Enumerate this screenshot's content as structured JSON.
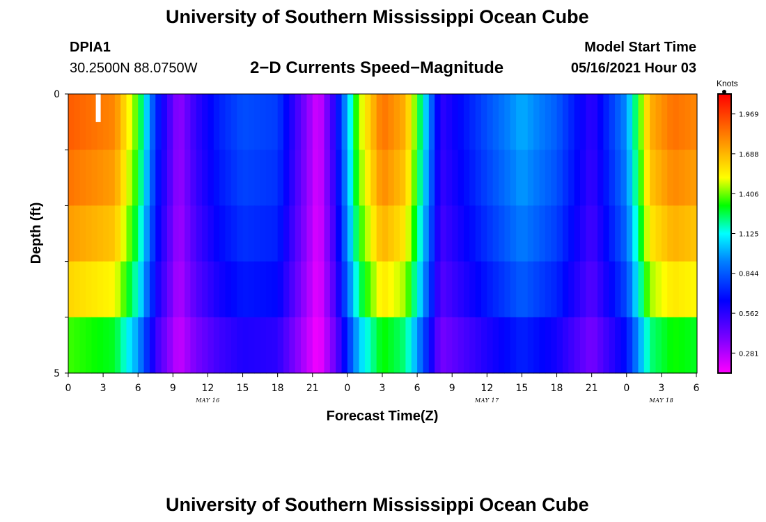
{
  "header": {
    "title": "University of Southern Mississippi Ocean Cube",
    "station": "DPIA1",
    "coords": "30.2500N  88.0750W",
    "subtitle": "2−D Currents Speed−Magnitude",
    "model_start_label": "Model Start Time",
    "model_start_value": "05/16/2021 Hour 03"
  },
  "footer": {
    "title": "University of Southern Mississippi Ocean Cube"
  },
  "colorbar": {
    "unit": "Knots",
    "ticks": [
      "1.969",
      "1.688",
      "1.406",
      "1.125",
      "0.844",
      "0.562",
      "0.281"
    ],
    "tick_values": [
      1.969,
      1.688,
      1.406,
      1.125,
      0.844,
      0.562,
      0.281
    ],
    "range": [
      0.14,
      2.11
    ]
  },
  "chart_data": {
    "type": "heatmap",
    "title": "2−D Currents Speed−Magnitude",
    "xlabel": "Forecast Time(Z)",
    "ylabel": "Depth (ft)",
    "x_tick_labels": [
      "0",
      "3",
      "6",
      "9",
      "12",
      "15",
      "18",
      "21",
      "0",
      "3",
      "6",
      "9",
      "12",
      "15",
      "18",
      "21",
      "0",
      "3",
      "6"
    ],
    "x_hours": [
      0,
      3,
      6,
      9,
      12,
      15,
      18,
      21,
      24,
      27,
      30,
      33,
      36,
      39,
      42,
      45,
      48,
      51,
      54
    ],
    "xlim": [
      0,
      54
    ],
    "date_labels": [
      {
        "text": "MAY 16",
        "hour": 12
      },
      {
        "text": "MAY 17",
        "hour": 36
      },
      {
        "text": "MAY 18",
        "hour": 51
      }
    ],
    "y_tick_labels": [
      "0",
      "5"
    ],
    "ylim": [
      0,
      5
    ],
    "depth_layers": 5,
    "time_step_hours": 0.5,
    "speed_model": {
      "description": "speed in knots, piecewise-linear in forecast hour, reduced with depth",
      "hours": [
        0,
        4,
        6,
        7.5,
        9.5,
        11,
        13,
        15,
        18,
        20,
        21.5,
        23,
        25,
        27,
        29,
        30,
        32,
        36,
        39,
        42,
        45,
        48,
        50,
        52,
        54
      ],
      "speeds": [
        1.9,
        1.8,
        1.35,
        0.75,
        0.33,
        0.55,
        0.72,
        0.82,
        0.78,
        0.45,
        0.2,
        0.6,
        1.45,
        1.85,
        1.7,
        1.35,
        0.55,
        0.82,
        1.0,
        0.85,
        0.55,
        0.95,
        1.7,
        1.85,
        1.8
      ],
      "depth_factors": [
        1.0,
        0.97,
        0.92,
        0.85,
        0.72
      ]
    }
  }
}
